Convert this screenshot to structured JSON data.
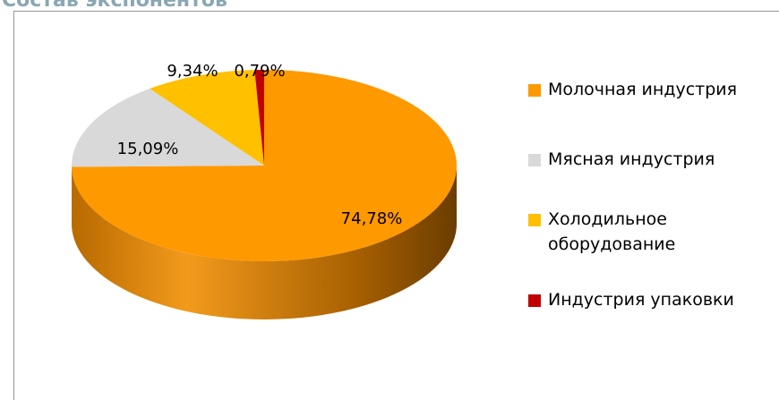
{
  "chart_data": {
    "type": "pie3d",
    "title": "Состав экспонентов",
    "categories": [
      "Молочная индустрия",
      "Мясная индустрия",
      "Холодильное оборудование",
      "Индустрия упаковки"
    ],
    "values": [
      74.78,
      15.09,
      9.34,
      0.79
    ],
    "value_labels": [
      "74,78%",
      "15,09%",
      "9,34%",
      "0,79%"
    ],
    "colors": [
      "#ff9900",
      "#d9d9d9",
      "#ffc000",
      "#c00000"
    ],
    "legend": "right"
  }
}
